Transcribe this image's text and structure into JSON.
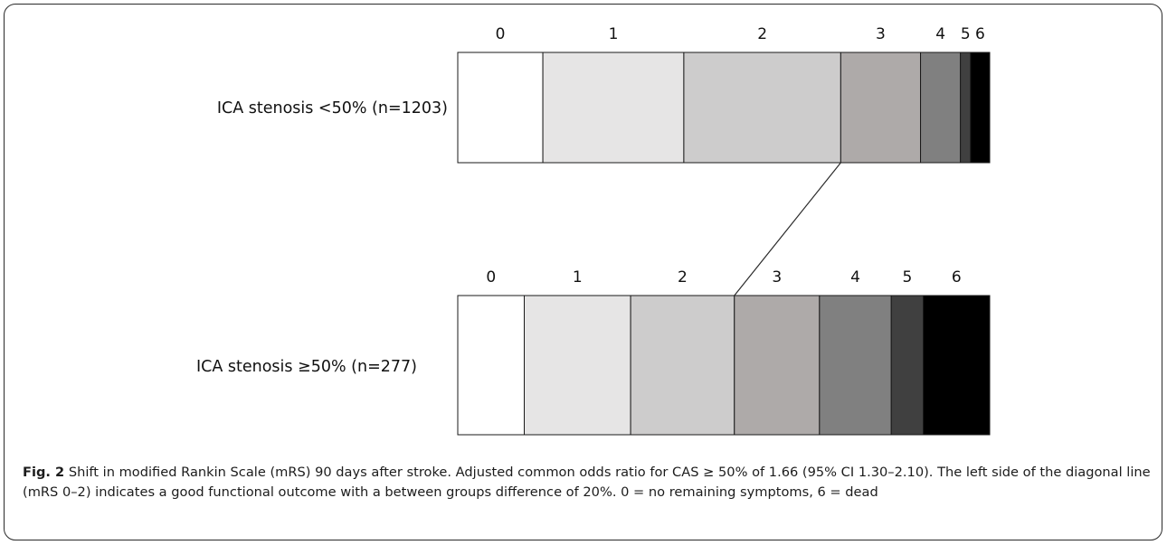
{
  "chart_data": {
    "type": "bar",
    "stacked": true,
    "orientation": "horizontal",
    "normalized": true,
    "categories": [
      "0",
      "1",
      "2",
      "3",
      "4",
      "5",
      "6"
    ],
    "category_colors": [
      "#ffffff",
      "#e6e5e5",
      "#cdcccc",
      "#aeaaa9",
      "#808080",
      "#404040",
      "#000000"
    ],
    "series": [
      {
        "name": "ICA stenosis <50% (n=1203)",
        "values": [
          16,
          26.5,
          29.5,
          15,
          7.5,
          1.9,
          3.6
        ]
      },
      {
        "name": "ICA stenosis ≥50% (n=277)",
        "values": [
          12.5,
          20,
          19.5,
          16,
          13.5,
          6,
          12.5
        ]
      }
    ],
    "annotations": [
      {
        "type": "diagonal-line",
        "connects": "boundary between mRS 2 and 3 of each row"
      }
    ],
    "legend": "none",
    "grid": false
  },
  "caption": {
    "label": "Fig. 2",
    "text": " Shift in modified Rankin Scale (mRS) 90 days after stroke. Adjusted common odds ratio for CAS ≥ 50% of 1.66 (95% CI 1.30–2.10). The left side of the diagonal line (mRS 0–2) indicates a good functional outcome with a between groups difference of 20%. 0 = no remaining symptoms, 6 = dead"
  }
}
